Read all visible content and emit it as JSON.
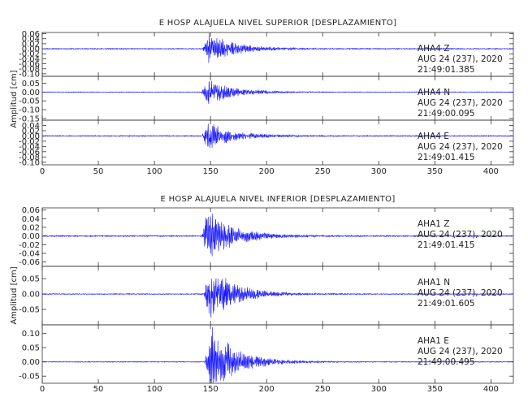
{
  "chart_data": [
    {
      "type": "line",
      "title": "E HOSP ALAJUELA NIVEL SUPERIOR [DESPLAZAMIENTO]",
      "ylabel": "Amplitud [cm]",
      "xlim": [
        0,
        420
      ],
      "xticks": [
        0,
        50,
        100,
        150,
        200,
        250,
        300,
        350,
        400
      ],
      "series": [
        {
          "name": "AHA4 Z",
          "annotation": [
            "AHA4   Z",
            "AUG 24 (237), 2020",
            "21:49:01.385"
          ],
          "ylim": [
            -0.11,
            0.065
          ],
          "yticks": [
            "-0.10",
            "-0.08",
            "-0.06",
            "-0.04",
            "-0.02",
            "0.00",
            "0.02",
            "0.04",
            "0.06"
          ],
          "event_start": 143,
          "peak": 0.06,
          "baseline_noise": 0.002,
          "seed": 11
        },
        {
          "name": "AHA4 N",
          "annotation": [
            "AHA4   N",
            "AUG 24 (237), 2020",
            "21:49:00.095"
          ],
          "ylim": [
            -0.16,
            0.09
          ],
          "yticks": [
            "-0.15",
            "-0.10",
            "-0.05",
            "0.00",
            "0.05"
          ],
          "event_start": 142,
          "peak": 0.07,
          "baseline_noise": 0.002,
          "seed": 23
        },
        {
          "name": "AHA4 E",
          "annotation": [
            "AHA4   E",
            "AUG 24 (237), 2020",
            "21:49:01.415"
          ],
          "ylim": [
            -0.11,
            0.06
          ],
          "yticks": [
            "-0.10",
            "-0.08",
            "-0.06",
            "-0.04",
            "-0.02",
            "0.00",
            "0.02",
            "0.04"
          ],
          "event_start": 142,
          "peak": 0.05,
          "baseline_noise": 0.002,
          "seed": 37
        }
      ]
    },
    {
      "type": "line",
      "title": "E HOSP ALAJUELA NIVEL INFERIOR [DESPLAZAMIENTO]",
      "ylabel": "Amplitud [cm]",
      "xlim": [
        0,
        420
      ],
      "xticks": [
        0,
        50,
        100,
        150,
        200,
        250,
        300,
        350,
        400
      ],
      "series": [
        {
          "name": "AHA1 Z",
          "annotation": [
            "AHA1   Z",
            "AUG 24 (237), 2020",
            "21:49:01.415"
          ],
          "ylim": [
            -0.07,
            0.065
          ],
          "yticks": [
            "-0.06",
            "-0.04",
            "-0.02",
            "0.00",
            "0.02",
            "0.04",
            "0.06"
          ],
          "event_start": 142,
          "peak": 0.06,
          "baseline_noise": 0.0015,
          "seed": 51
        },
        {
          "name": "AHA1 N",
          "annotation": [
            "AHA1   N",
            "AUG 24 (237), 2020",
            "21:49:01.605"
          ],
          "ylim": [
            -0.1,
            0.09
          ],
          "yticks": [
            "-0.05",
            "0.00",
            "0.05"
          ],
          "event_start": 144,
          "peak": 0.085,
          "baseline_noise": 0.0015,
          "seed": 67
        },
        {
          "name": "AHA1 E",
          "annotation": [
            "AHA1   E",
            "AUG 24 (237), 2020",
            "21:49:00.495"
          ],
          "ylim": [
            -0.075,
            0.13
          ],
          "yticks": [
            "-0.05",
            "0.00",
            "0.05",
            "0.10"
          ],
          "event_start": 145,
          "peak": 0.12,
          "baseline_noise": 0.0015,
          "seed": 83
        }
      ]
    }
  ],
  "colors": {
    "trace": "#1a1aff",
    "axis": "#333333",
    "text": "#222222"
  }
}
